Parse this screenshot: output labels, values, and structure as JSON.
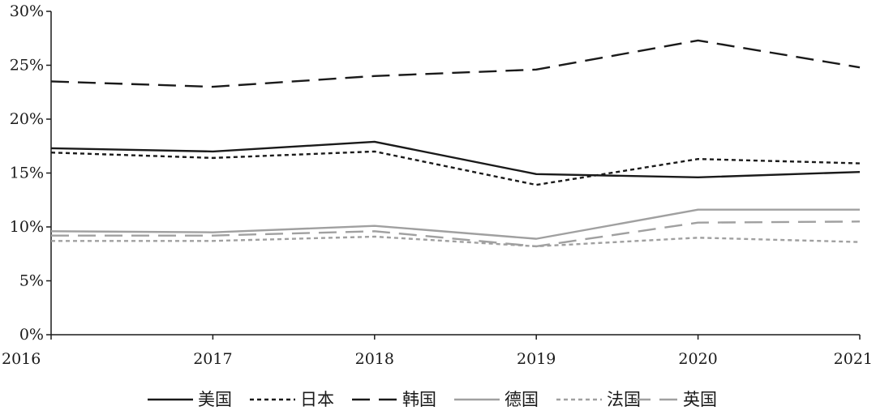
{
  "chart_data": {
    "type": "line",
    "title": "",
    "xlabel": "",
    "ylabel": "",
    "x": [
      2016,
      2017,
      2018,
      2019,
      2020,
      2021
    ],
    "x_tick_labels": [
      "2016",
      "2017",
      "2018",
      "2019",
      "2020",
      "2021"
    ],
    "ylim": [
      0,
      30
    ],
    "y_ticks": [
      0,
      5,
      10,
      15,
      20,
      25,
      30
    ],
    "y_tick_labels": [
      "0%",
      "5%",
      "10%",
      "15%",
      "20%",
      "25%",
      "30%"
    ],
    "grid": false,
    "legend_position": "bottom",
    "series": [
      {
        "name": "美国",
        "values": [
          17.3,
          17.0,
          17.9,
          14.9,
          14.6,
          15.1
        ],
        "color": "#1a1a1a",
        "dash": "solid"
      },
      {
        "name": "日本",
        "values": [
          16.9,
          16.4,
          17.0,
          13.9,
          16.3,
          15.9
        ],
        "color": "#1a1a1a",
        "dash": "dotted"
      },
      {
        "name": "韩国",
        "values": [
          23.5,
          23.0,
          24.0,
          24.6,
          27.3,
          24.8
        ],
        "color": "#1a1a1a",
        "dash": "longdash"
      },
      {
        "name": "德国",
        "values": [
          9.6,
          9.5,
          10.1,
          8.9,
          11.6,
          11.6
        ],
        "color": "#a0a0a0",
        "dash": "solid"
      },
      {
        "name": "法国",
        "values": [
          8.7,
          8.7,
          9.1,
          8.2,
          9.0,
          8.6
        ],
        "color": "#a0a0a0",
        "dash": "dotted"
      },
      {
        "name": "英国",
        "values": [
          9.2,
          9.2,
          9.6,
          8.2,
          10.4,
          10.5
        ],
        "color": "#a0a0a0",
        "dash": "longdash"
      }
    ]
  }
}
